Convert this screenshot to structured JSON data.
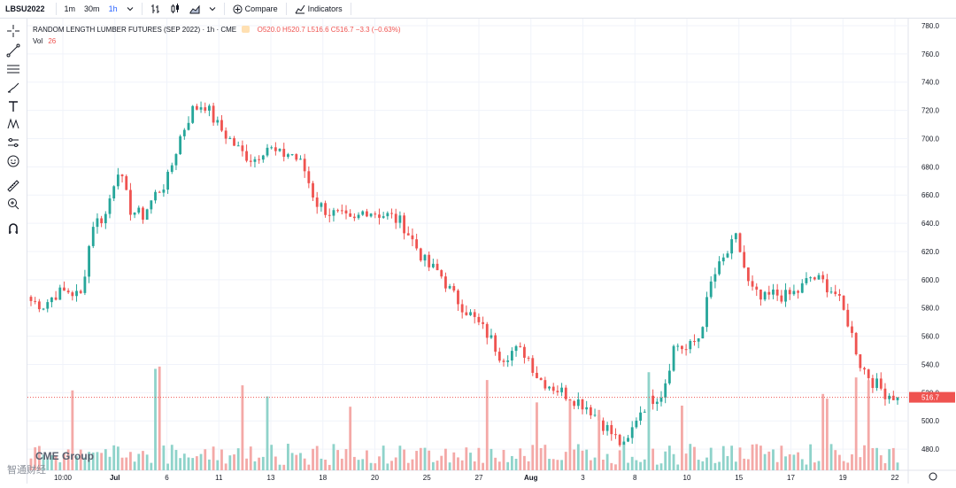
{
  "toolbar": {
    "symbol": "LBSU2022",
    "intervals": [
      "1m",
      "30m",
      "1h"
    ],
    "active_interval": "1h",
    "compare_label": "Compare",
    "indicators_label": "Indicators"
  },
  "legend": {
    "title": "RANDOM LENGTH LUMBER FUTURES (SEP 2022) · 1h · CME",
    "ohlc": "O520.0 H520.7 L516.6 C516.7 −3.3 (−0.63%)",
    "vol_label": "Vol",
    "vol_value": "26"
  },
  "watermark": {
    "brand": "CME Group",
    "source": "智通财经"
  },
  "last_price_label": "516.7",
  "colors": {
    "up": "#26a69a",
    "down": "#ef5350",
    "up_vol": "#8fd3ca",
    "down_vol": "#f4a9a7",
    "grid": "#f0f3fa"
  },
  "chart_data": {
    "type": "candlestick",
    "ylim": [
      465,
      785
    ],
    "y_ticks": [
      480,
      500,
      520,
      540,
      560,
      580,
      600,
      620,
      640,
      660,
      680,
      700,
      720,
      740,
      760,
      780
    ],
    "x_ticks": [
      "10:00",
      "Jul",
      "6",
      "11",
      "13",
      "18",
      "20",
      "25",
      "27",
      "Aug",
      "3",
      "8",
      "10",
      "15",
      "17",
      "19",
      "22"
    ],
    "last_price": 516.7,
    "close_series": [
      585,
      582,
      590,
      592,
      588,
      640,
      645,
      680,
      650,
      645,
      660,
      670,
      700,
      720,
      725,
      710,
      700,
      690,
      685,
      695,
      688,
      690,
      680,
      655,
      648,
      645,
      640,
      650,
      647,
      645,
      640,
      625,
      610,
      605,
      590,
      580,
      570,
      560,
      545,
      550,
      548,
      530,
      525,
      520,
      515,
      510,
      500,
      490,
      480,
      505,
      515,
      520,
      555,
      550,
      560,
      600,
      615,
      630,
      595,
      585,
      590,
      588,
      592,
      602,
      598,
      590,
      570,
      540,
      528,
      520,
      516.7
    ],
    "volume_note": "volume bars below price, per candle"
  }
}
